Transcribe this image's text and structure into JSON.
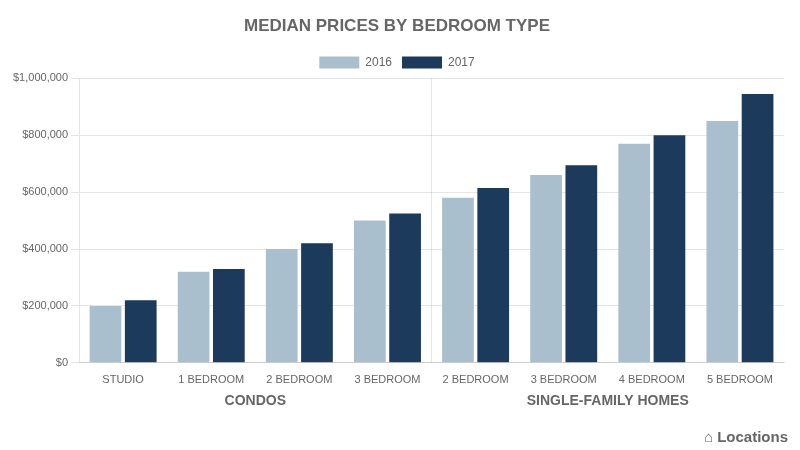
{
  "chart_data": {
    "type": "bar",
    "title": "MEDIAN PRICES BY BEDROOM TYPE",
    "categories": [
      "STUDIO",
      "1 BEDROOM",
      "2 BEDROOM",
      "3 BEDROOM",
      "2 BEDROOM",
      "3 BEDROOM",
      "4 BEDROOM",
      "5 BEDROOM"
    ],
    "series": [
      {
        "name": "2016",
        "color": "#A9BFCE",
        "values": [
          200000,
          320000,
          400000,
          500000,
          580000,
          660000,
          770000,
          850000
        ]
      },
      {
        "name": "2017",
        "color": "#1B3A5C",
        "values": [
          220000,
          330000,
          420000,
          525000,
          615000,
          695000,
          800000,
          945000
        ]
      }
    ],
    "ylim": [
      0,
      1000000
    ],
    "yticks": [
      {
        "value": 0,
        "label": "$0"
      },
      {
        "value": 200000,
        "label": "$200,000"
      },
      {
        "value": 400000,
        "label": "$400,000"
      },
      {
        "value": 600000,
        "label": "$600,000"
      },
      {
        "value": 800000,
        "label": "$800,000"
      },
      {
        "value": 1000000,
        "label": "$1,000,000"
      }
    ],
    "grid": true,
    "legend": "top",
    "annotations": [
      {
        "text": "CONDOS",
        "categories": [
          "STUDIO",
          "1 BEDROOM",
          "2 BEDROOM",
          "3 BEDROOM"
        ]
      },
      {
        "text": "SINGLE-FAMILY HOMES",
        "categories": [
          "2 BEDROOM",
          "3 BEDROOM",
          "4 BEDROOM",
          "5 BEDROOM"
        ]
      },
      {
        "text": "⌂"
      },
      {
        "text": "Locations"
      }
    ]
  }
}
